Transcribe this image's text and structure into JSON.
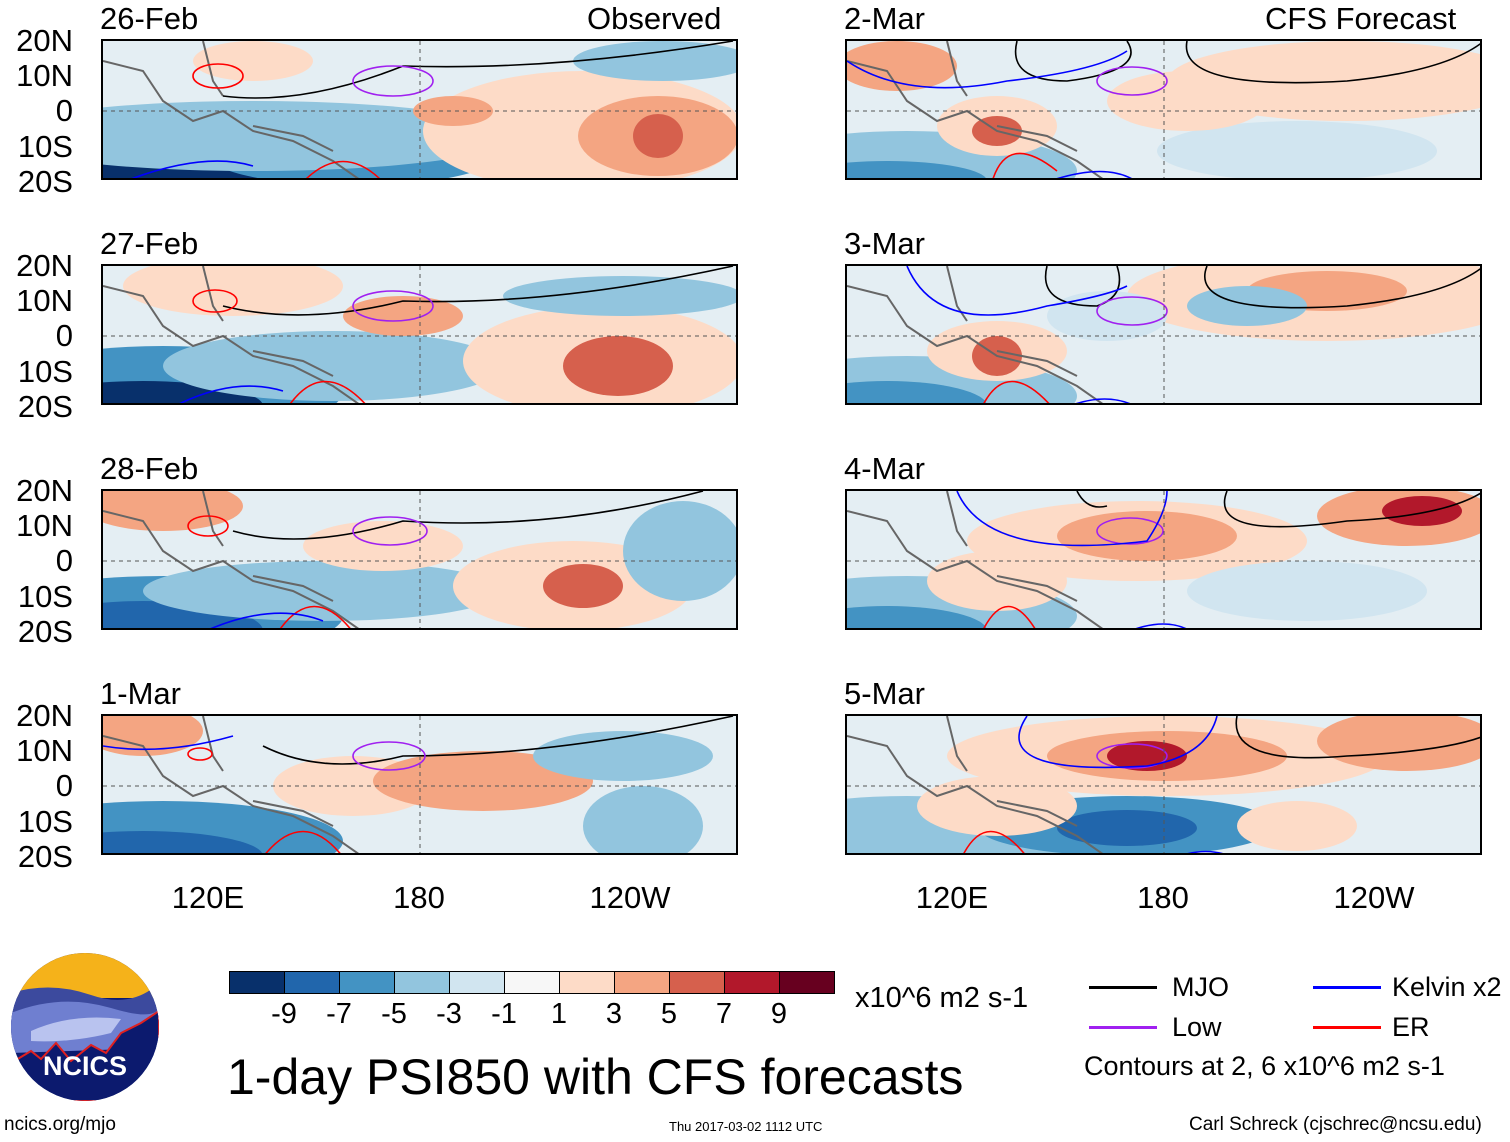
{
  "header": {
    "left_label": "Observed",
    "right_label": "CFS Forecast"
  },
  "panels": {
    "observed": [
      "26-Feb",
      "27-Feb",
      "28-Feb",
      "1-Mar"
    ],
    "forecast": [
      "2-Mar",
      "3-Mar",
      "4-Mar",
      "5-Mar"
    ]
  },
  "lat_labels": [
    "20N",
    "10N",
    "0",
    "10S",
    "20S"
  ],
  "lon_labels": [
    "120E",
    "180",
    "120W"
  ],
  "colorbar": {
    "colors": [
      "#08306b",
      "#2166ac",
      "#4393c3",
      "#92c5de",
      "#d1e5f0",
      "#f7f7f7",
      "#fddbc7",
      "#f4a582",
      "#d6604d",
      "#b2182b",
      "#67001f"
    ],
    "labels": [
      "-9",
      "-7",
      "-5",
      "-3",
      "-1",
      "1",
      "3",
      "5",
      "7",
      "9"
    ],
    "units": "x10^6 m2 s-1"
  },
  "legend": {
    "items": [
      {
        "label": "MJO",
        "color": "#000000"
      },
      {
        "label": "Kelvin x2",
        "color": "#0000ff"
      },
      {
        "label": "Low",
        "color": "#a020f0"
      },
      {
        "label": "ER",
        "color": "#ff0000"
      }
    ],
    "contours_note": "Contours at 2, 6 x10^6 m2 s-1"
  },
  "title": "1-day PSI850 with CFS forecasts",
  "logo_text": "NCICS",
  "footer": {
    "url": "ncics.org/mjo",
    "timestamp": "Thu 2017-03-02 1112 UTC",
    "credit": "Carl Schreck (cjschrec@ncsu.edu)"
  }
}
